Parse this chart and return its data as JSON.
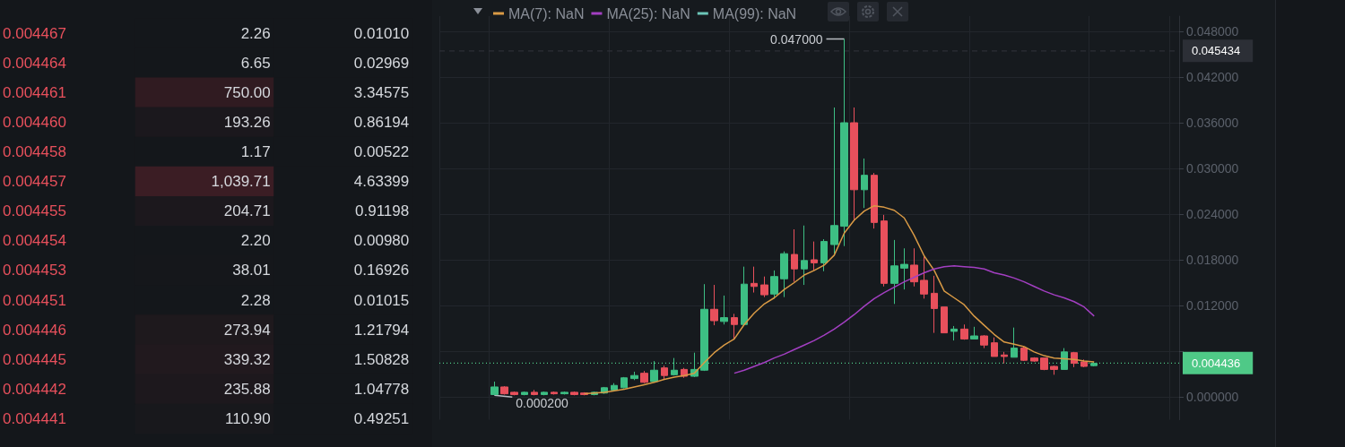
{
  "chart_data": [
    {
      "type": "heatmap",
      "categories": [
        null,
        null
      ],
      "y_categories": [
        "0.004467",
        "0.004464",
        "0.004461",
        "0.004460",
        "0.004458",
        "0.004457",
        "0.004455",
        "0.004454",
        "0.004453",
        "0.004451",
        "0.004446",
        "0.004445",
        "0.004442",
        "0.004441"
      ],
      "cells": [
        [
          2.26,
          0.0101
        ],
        [
          6.65,
          0.02969
        ],
        [
          750.0,
          3.34575
        ],
        [
          193.26,
          0.86194
        ],
        [
          1.17,
          0.00522
        ],
        [
          1039.71,
          4.63399
        ],
        [
          204.71,
          0.91198
        ],
        [
          2.2,
          0.0098
        ],
        [
          38.01,
          0.16926
        ],
        [
          2.28,
          0.01015
        ],
        [
          273.94,
          1.21794
        ],
        [
          339.32,
          1.50828
        ],
        [
          235.88,
          1.04778
        ],
        [
          110.9,
          0.49251
        ]
      ],
      "cell_labels": [
        [
          "2.26",
          "0.01010"
        ],
        [
          "6.65",
          "0.02969"
        ],
        [
          "750.00",
          "3.34575"
        ],
        [
          "193.26",
          "0.86194"
        ],
        [
          "1.17",
          "0.00522"
        ],
        [
          "1,039.71",
          "4.63399"
        ],
        [
          "204.71",
          "0.91198"
        ],
        [
          "2.20",
          "0.00980"
        ],
        [
          "38.01",
          "0.16926"
        ],
        [
          "2.28",
          "0.01015"
        ],
        [
          "273.94",
          "1.21794"
        ],
        [
          "339.32",
          "1.50828"
        ],
        [
          "235.88",
          "1.04778"
        ],
        [
          "110.90",
          "0.49251"
        ]
      ]
    },
    {
      "type": "candlestick",
      "categories": [
        null,
        null,
        null,
        null,
        null,
        null,
        null,
        null,
        null,
        null,
        null,
        null,
        null,
        null,
        null,
        null,
        null,
        null,
        null,
        null,
        null,
        null,
        null,
        null,
        null,
        null,
        null,
        null,
        null,
        null,
        null,
        null,
        null,
        null,
        null,
        null,
        null,
        null,
        null,
        null,
        null,
        null,
        null,
        null,
        null,
        null,
        null,
        null,
        null,
        null,
        null,
        null,
        null,
        null,
        null,
        null,
        null,
        null,
        null,
        null,
        null
      ],
      "series": [
        {
          "type": "candlestick",
          "ohlc": [
            [
              0.0003,
              0.002,
              0.0002,
              0.0013
            ],
            [
              0.0013,
              0.0014,
              0.0003,
              0.0004
            ],
            [
              0.0006,
              0.0007,
              0.0002,
              0.0003
            ],
            [
              0.0003,
              0.0007,
              0.0002,
              0.0006
            ],
            [
              0.0006,
              0.0009,
              0.0002,
              0.0003
            ],
            [
              0.0003,
              0.0007,
              0.0002,
              0.0006
            ],
            [
              0.0006,
              0.0007,
              0.0003,
              0.0004
            ],
            [
              0.0004,
              0.0007,
              0.0003,
              0.0006
            ],
            [
              0.0006,
              0.0007,
              0.0002,
              0.0003
            ],
            [
              0.0005,
              0.0006,
              0.0002,
              0.0003
            ],
            [
              0.0003,
              0.0007,
              0.0002,
              0.0006
            ],
            [
              0.0005,
              0.0013,
              0.0004,
              0.0012
            ],
            [
              0.0009,
              0.0018,
              0.0008,
              0.0015
            ],
            [
              0.0012,
              0.0026,
              0.0011,
              0.0025
            ],
            [
              0.0024,
              0.0033,
              0.0022,
              0.0028
            ],
            [
              0.0031,
              0.0034,
              0.0018,
              0.0019
            ],
            [
              0.002,
              0.0047,
              0.0019,
              0.0035
            ],
            [
              0.0038,
              0.0041,
              0.0023,
              0.0028
            ],
            [
              0.0029,
              0.0051,
              0.0028,
              0.0035
            ],
            [
              0.0036,
              0.0038,
              0.0025,
              0.0027
            ],
            [
              0.0027,
              0.0058,
              0.0026,
              0.0036
            ],
            [
              0.0035,
              0.0148,
              0.0034,
              0.0115
            ],
            [
              0.0115,
              0.0147,
              0.0094,
              0.01
            ],
            [
              0.0099,
              0.0133,
              0.0095,
              0.0104
            ],
            [
              0.0104,
              0.0109,
              0.0075,
              0.0095
            ],
            [
              0.0095,
              0.0171,
              0.0094,
              0.0148
            ],
            [
              0.0149,
              0.0171,
              0.0137,
              0.0145
            ],
            [
              0.0147,
              0.0158,
              0.0131,
              0.0134
            ],
            [
              0.0135,
              0.0166,
              0.0129,
              0.0158
            ],
            [
              0.0155,
              0.0191,
              0.0131,
              0.0188
            ],
            [
              0.0187,
              0.022,
              0.0151,
              0.0168
            ],
            [
              0.0168,
              0.0225,
              0.0147,
              0.0179
            ],
            [
              0.018,
              0.0204,
              0.0166,
              0.0176
            ],
            [
              0.0176,
              0.0207,
              0.0165,
              0.0204
            ],
            [
              0.02,
              0.038,
              0.0188,
              0.0225
            ],
            [
              0.0224,
              0.047,
              0.0198,
              0.036
            ],
            [
              0.036,
              0.038,
              0.0231,
              0.0272
            ],
            [
              0.0272,
              0.0313,
              0.0248,
              0.0291
            ],
            [
              0.0291,
              0.0294,
              0.0221,
              0.0229
            ],
            [
              0.0231,
              0.0239,
              0.0145,
              0.0149
            ],
            [
              0.0149,
              0.0206,
              0.0122,
              0.0172
            ],
            [
              0.0169,
              0.0195,
              0.0141,
              0.0174
            ],
            [
              0.0173,
              0.0195,
              0.0145,
              0.0151
            ],
            [
              0.0153,
              0.0184,
              0.0129,
              0.0135
            ],
            [
              0.0136,
              0.0159,
              0.0084,
              0.0116
            ],
            [
              0.0118,
              0.0118,
              0.0084,
              0.0084
            ],
            [
              0.0086,
              0.0093,
              0.0074,
              0.0089
            ],
            [
              0.0089,
              0.0095,
              0.0075,
              0.0076
            ],
            [
              0.0076,
              0.0092,
              0.0076,
              0.008
            ],
            [
              0.008,
              0.0081,
              0.0064,
              0.0068
            ],
            [
              0.0071,
              0.0078,
              0.0053,
              0.0053
            ],
            [
              0.0055,
              0.0059,
              0.0044,
              0.0053
            ],
            [
              0.0052,
              0.0091,
              0.0052,
              0.0064
            ],
            [
              0.0064,
              0.0066,
              0.0047,
              0.0048
            ],
            [
              0.0051,
              0.0052,
              0.0046,
              0.0047
            ],
            [
              0.0051,
              0.0051,
              0.0035,
              0.0036
            ],
            [
              0.004,
              0.0041,
              0.0029,
              0.0036
            ],
            [
              0.0036,
              0.0064,
              0.0036,
              0.0059
            ],
            [
              0.0058,
              0.0059,
              0.0039,
              0.0044
            ],
            [
              0.0046,
              0.0049,
              0.0039,
              0.004
            ],
            [
              0.0041,
              0.0046,
              0.004,
              0.0044
            ]
          ],
          "colors": [
            "#3dbf84",
            "#e8505c",
            "#e8505c",
            "#3dbf84",
            "#e8505c",
            "#3dbf84",
            "#e8505c",
            "#3dbf84",
            "#e8505c",
            "#e8505c",
            "#3dbf84",
            "#3dbf84",
            "#3dbf84",
            "#3dbf84",
            "#3dbf84",
            "#e8505c",
            "#3dbf84",
            "#e8505c",
            "#3dbf84",
            "#e8505c",
            "#3dbf84",
            "#3dbf84",
            "#e8505c",
            "#3dbf84",
            "#e8505c",
            "#3dbf84",
            "#e8505c",
            "#e8505c",
            "#3dbf84",
            "#3dbf84",
            "#e8505c",
            "#3dbf84",
            "#e8505c",
            "#3dbf84",
            "#3dbf84",
            "#3dbf84",
            "#e8505c",
            "#3dbf84",
            "#e8505c",
            "#e8505c",
            "#3dbf84",
            "#3dbf84",
            "#e8505c",
            "#e8505c",
            "#e8505c",
            "#e8505c",
            "#3dbf84",
            "#e8505c",
            "#3dbf84",
            "#e8505c",
            "#e8505c",
            "#e8505c",
            "#3dbf84",
            "#e8505c",
            "#e8505c",
            "#e8505c",
            "#e8505c",
            "#3dbf84",
            "#e8505c",
            "#e8505c",
            "#3dbf84"
          ]
        },
        {
          "type": "line",
          "name": "MA(7): NaN",
          "color": "#d99a45",
          "values": [
            null,
            null,
            null,
            null,
            null,
            null,
            null,
            null,
            null,
            0.0004,
            0.0005,
            0.0006,
            0.0008,
            0.001,
            0.0013,
            0.0016,
            0.0019,
            0.0023,
            0.0026,
            0.0028,
            0.0031,
            0.0045,
            0.0058,
            0.0068,
            0.0076,
            0.0095,
            0.011,
            0.0122,
            0.013,
            0.0141,
            0.015,
            0.016,
            0.0166,
            0.0173,
            0.0186,
            0.0215,
            0.0232,
            0.0244,
            0.0251,
            0.0249,
            0.0245,
            0.0235,
            0.0212,
            0.0185,
            0.0166,
            0.0139,
            0.013,
            0.0121,
            0.0106,
            0.0094,
            0.0082,
            0.0072,
            0.0069,
            0.0066,
            0.0059,
            0.0054,
            0.0051,
            0.005,
            0.0049,
            0.0047,
            0.0046
          ]
        },
        {
          "type": "line",
          "name": "MA(25): NaN",
          "color": "#a33fc2",
          "values": [
            null,
            null,
            null,
            null,
            null,
            null,
            null,
            null,
            null,
            null,
            null,
            null,
            null,
            null,
            null,
            null,
            null,
            null,
            null,
            null,
            null,
            null,
            null,
            null,
            0.0031,
            0.0035,
            0.004,
            0.0045,
            0.0051,
            0.0056,
            0.0062,
            0.0068,
            0.0074,
            0.0081,
            0.0089,
            0.0098,
            0.0108,
            0.0119,
            0.0129,
            0.0137,
            0.0144,
            0.0151,
            0.0157,
            0.0163,
            0.0168,
            0.0171,
            0.0172,
            0.0171,
            0.017,
            0.0168,
            0.0163,
            0.016,
            0.0156,
            0.0151,
            0.0145,
            0.0139,
            0.0134,
            0.013,
            0.0125,
            0.0118,
            0.0106
          ]
        },
        {
          "type": "line",
          "name": "MA(99): NaN",
          "color": "#6cc6b8",
          "values": [
            null,
            null,
            null,
            null,
            null,
            null,
            null,
            null,
            null,
            null,
            null,
            null,
            null,
            null,
            null,
            null,
            null,
            null,
            null,
            null,
            null,
            null,
            null,
            null,
            null,
            null,
            null,
            null,
            null,
            null,
            null,
            null,
            null,
            null,
            null,
            null,
            null,
            null,
            null,
            null,
            null,
            null,
            null,
            null,
            null,
            null,
            null,
            null,
            null,
            null,
            null,
            null,
            null,
            null,
            null,
            null,
            null,
            null,
            null,
            null,
            null
          ]
        }
      ],
      "ylim": [
        -0.003,
        0.05
      ],
      "yticks": [
        {
          "value": 0,
          "label": "0.000000"
        },
        {
          "value": 0.006,
          "label": null
        },
        {
          "value": 0.012,
          "label": "0.012000"
        },
        {
          "value": 0.018,
          "label": "0.018000"
        },
        {
          "value": 0.024,
          "label": "0.024000"
        },
        {
          "value": 0.03,
          "label": "0.030000"
        },
        {
          "value": 0.036,
          "label": "0.036000"
        },
        {
          "value": 0.042,
          "label": "0.042000"
        },
        {
          "value": 0.048,
          "label": "0.048000"
        }
      ],
      "tick_labels": "y",
      "grid": true,
      "legend": "top left",
      "marker": "none",
      "annotations": [
        "0.047000",
        "0.000200"
      ],
      "ref_lines": [
        {
          "axis": "y",
          "value": 0.045434,
          "label": "0.045434",
          "color": "#2c2f36",
          "line_style": "dashed"
        },
        {
          "axis": "y",
          "value": 0.004436,
          "label": "0.004436",
          "color": "#4fc987",
          "line_style": "dotted"
        }
      ]
    }
  ]
}
